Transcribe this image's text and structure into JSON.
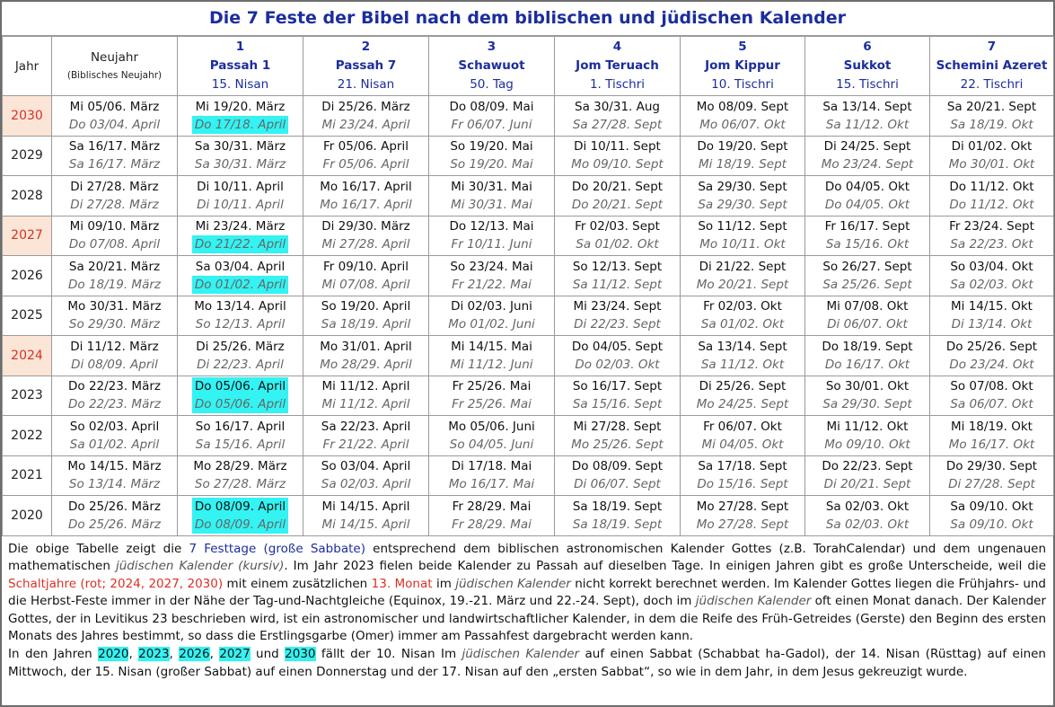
{
  "title": "Die 7 Feste der Bibel nach dem biblischen und jüdischen Kalender",
  "header": {
    "year": "Jahr",
    "newyear": "Neujahr",
    "newyear_sub": "(Biblisches Neujahr)",
    "feasts": [
      {
        "num": "1",
        "name": "Passah 1",
        "date": "15. Nisan"
      },
      {
        "num": "2",
        "name": "Passah 7",
        "date": "21. Nisan"
      },
      {
        "num": "3",
        "name": "Schawuot",
        "date": "50. Tag"
      },
      {
        "num": "4",
        "name": "Jom Teruach",
        "date": "1. Tischri"
      },
      {
        "num": "5",
        "name": "Jom Kippur",
        "date": "10. Tischri"
      },
      {
        "num": "6",
        "name": "Sukkot",
        "date": "15. Tischri"
      },
      {
        "num": "7",
        "name": "Schemini Azeret",
        "date": "22. Tischri"
      }
    ]
  },
  "rows": [
    {
      "year": "2030",
      "leap": true,
      "cells": [
        {
          "b": "Mi 05/06. März",
          "j": "Do 03/04. April"
        },
        {
          "b": "Mi 19/20. März",
          "j": "Do 17/18. April",
          "hj": true
        },
        {
          "b": "Di 25/26. März",
          "j": "Mi 23/24. April"
        },
        {
          "b": "Do 08/09. Mai",
          "j": "Fr 06/07. Juni"
        },
        {
          "b": "Sa 30/31. Aug",
          "j": "Sa 27/28. Sept"
        },
        {
          "b": "Mo 08/09. Sept",
          "j": "Mo 06/07. Okt"
        },
        {
          "b": "Sa 13/14. Sept",
          "j": "Sa 11/12. Okt"
        },
        {
          "b": "Sa 20/21. Sept",
          "j": "Sa 18/19. Okt"
        }
      ]
    },
    {
      "year": "2029",
      "leap": false,
      "cells": [
        {
          "b": "Sa 16/17. März",
          "j": "Sa 16/17. März"
        },
        {
          "b": "Sa 30/31. März",
          "j": "Sa 30/31. März"
        },
        {
          "b": "Fr 05/06. April",
          "j": "Fr 05/06. April"
        },
        {
          "b": "So 19/20. Mai",
          "j": "So 19/20. Mai"
        },
        {
          "b": "Di 10/11. Sept",
          "j": "Mo 09/10. Sept"
        },
        {
          "b": "Do 19/20. Sept",
          "j": "Mi 18/19. Sept"
        },
        {
          "b": "Di 24/25. Sept",
          "j": "Mo 23/24. Sept"
        },
        {
          "b": "Di 01/02. Okt",
          "j": "Mo 30/01. Okt"
        }
      ]
    },
    {
      "year": "2028",
      "leap": false,
      "cells": [
        {
          "b": "Di 27/28. März",
          "j": "Di 27/28. März"
        },
        {
          "b": "Di 10/11. April",
          "j": "Di 10/11. April"
        },
        {
          "b": "Mo 16/17. April",
          "j": "Mo 16/17. April"
        },
        {
          "b": "Mi 30/31. Mai",
          "j": "Mi 30/31. Mai"
        },
        {
          "b": "Do 20/21. Sept",
          "j": "Do 20/21. Sept"
        },
        {
          "b": "Sa 29/30. Sept",
          "j": "Sa 29/30. Sept"
        },
        {
          "b": "Do 04/05. Okt",
          "j": "Do 04/05. Okt"
        },
        {
          "b": "Do 11/12. Okt",
          "j": "Do 11/12. Okt"
        }
      ]
    },
    {
      "year": "2027",
      "leap": true,
      "cells": [
        {
          "b": "Mi 09/10. März",
          "j": "Do 07/08. April"
        },
        {
          "b": "Mi 23/24. März",
          "j": "Do 21/22. April",
          "hj": true
        },
        {
          "b": "Di 29/30. März",
          "j": "Mi 27/28. April"
        },
        {
          "b": "Do 12/13. Mai",
          "j": "Fr 10/11. Juni"
        },
        {
          "b": "Fr 02/03. Sept",
          "j": "Sa 01/02. Okt"
        },
        {
          "b": "So 11/12. Sept",
          "j": "Mo 10/11. Okt"
        },
        {
          "b": "Fr 16/17. Sept",
          "j": "Sa 15/16. Okt"
        },
        {
          "b": "Fr 23/24. Sept",
          "j": "Sa 22/23. Okt"
        }
      ]
    },
    {
      "year": "2026",
      "leap": false,
      "cells": [
        {
          "b": "Sa 20/21. März",
          "j": "Do 18/19. März"
        },
        {
          "b": "Sa 03/04. April",
          "j": "Do 01/02. April",
          "hj": true
        },
        {
          "b": "Fr 09/10. April",
          "j": "Mi 07/08. April"
        },
        {
          "b": "So 23/24. Mai",
          "j": "Fr 21/22. Mai"
        },
        {
          "b": "So 12/13. Sept",
          "j": "Sa 11/12. Sept"
        },
        {
          "b": "Di 21/22. Sept",
          "j": "Mo 20/21. Sept"
        },
        {
          "b": "So 26/27. Sept",
          "j": "Sa 25/26. Sept"
        },
        {
          "b": "So 03/04. Okt",
          "j": "Sa 02/03. Okt"
        }
      ]
    },
    {
      "year": "2025",
      "leap": false,
      "cells": [
        {
          "b": "Mo 30/31. März",
          "j": "So 29/30. März"
        },
        {
          "b": "Mo 13/14. April",
          "j": "So 12/13. April"
        },
        {
          "b": "So 19/20. April",
          "j": "Sa 18/19. April"
        },
        {
          "b": "Di 02/03. Juni",
          "j": "Mo 01/02. Juni"
        },
        {
          "b": "Mi 23/24. Sept",
          "j": "Di 22/23. Sept"
        },
        {
          "b": "Fr 02/03. Okt",
          "j": "Sa 01/02. Okt"
        },
        {
          "b": "Mi 07/08. Okt",
          "j": "Di 06/07. Okt"
        },
        {
          "b": "Mi 14/15. Okt",
          "j": "Di 13/14. Okt"
        }
      ]
    },
    {
      "year": "2024",
      "leap": true,
      "cells": [
        {
          "b": "Di 11/12. März",
          "j": "Di 08/09. April"
        },
        {
          "b": "Di 25/26. März",
          "j": "Di 22/23. April"
        },
        {
          "b": "Mo 31/01. April",
          "j": "Mo 28/29. April"
        },
        {
          "b": "Mi 14/15. Mai",
          "j": "Mi 11/12. Juni"
        },
        {
          "b": "Do 04/05. Sept",
          "j": "Do 02/03. Okt"
        },
        {
          "b": "Sa 13/14. Sept",
          "j": "Sa 11/12. Okt"
        },
        {
          "b": "Do 18/19. Sept",
          "j": "Do 16/17. Okt"
        },
        {
          "b": "Do 25/26. Sept",
          "j": "Do 23/24. Okt"
        }
      ]
    },
    {
      "year": "2023",
      "leap": false,
      "cells": [
        {
          "b": "Do 22/23. März",
          "j": "Do 22/23. März"
        },
        {
          "b": "Do 05/06. April",
          "j": "Do 05/06. April",
          "hb": true,
          "hj": true
        },
        {
          "b": "Mi 11/12. April",
          "j": "Mi 11/12. April"
        },
        {
          "b": "Fr 25/26. Mai",
          "j": "Fr 25/26. Mai"
        },
        {
          "b": "So 16/17. Sept",
          "j": "Sa 15/16. Sept"
        },
        {
          "b": "Di 25/26. Sept",
          "j": "Mo 24/25. Sept"
        },
        {
          "b": "So 30/01. Okt",
          "j": "Sa 29/30. Sept"
        },
        {
          "b": "So 07/08. Okt",
          "j": "Sa 06/07. Okt"
        }
      ]
    },
    {
      "year": "2022",
      "leap": false,
      "cells": [
        {
          "b": "So 02/03. April",
          "j": "Sa 01/02. April"
        },
        {
          "b": "So 16/17. April",
          "j": "Sa 15/16. April"
        },
        {
          "b": "Sa 22/23. April",
          "j": "Fr 21/22. April"
        },
        {
          "b": "Mo 05/06. Juni",
          "j": "So 04/05. Juni"
        },
        {
          "b": "Mi 27/28. Sept",
          "j": "Mo 25/26. Sept"
        },
        {
          "b": "Fr 06/07. Okt",
          "j": "Mi 04/05. Okt"
        },
        {
          "b": "Mi 11/12. Okt",
          "j": "Mo 09/10. Okt"
        },
        {
          "b": "Mi 18/19. Okt",
          "j": "Mo 16/17. Okt"
        }
      ]
    },
    {
      "year": "2021",
      "leap": false,
      "cells": [
        {
          "b": "Mo 14/15. März",
          "j": "So 13/14. März"
        },
        {
          "b": "Mo 28/29. März",
          "j": "So 27/28. März"
        },
        {
          "b": "So 03/04. April",
          "j": "Sa 02/03. April"
        },
        {
          "b": "Di 17/18. Mai",
          "j": "Mo 16/17. Mai"
        },
        {
          "b": "Do 08/09. Sept",
          "j": "Di 06/07. Sept"
        },
        {
          "b": "Sa 17/18. Sept",
          "j": "Do 15/16. Sept"
        },
        {
          "b": "Do 22/23. Sept",
          "j": "Di 20/21. Sept"
        },
        {
          "b": "Do 29/30. Sept",
          "j": "Di 27/28. Sept"
        }
      ]
    },
    {
      "year": "2020",
      "leap": false,
      "cells": [
        {
          "b": "Do 25/26. März",
          "j": "Do 25/26. März"
        },
        {
          "b": "Do 08/09. April",
          "j": "Do 08/09. April",
          "hb": true,
          "hj": true
        },
        {
          "b": "Mi 14/15. April",
          "j": "Mi 14/15. April"
        },
        {
          "b": "Fr 28/29. Mai",
          "j": "Fr 28/29. Mai"
        },
        {
          "b": "Sa 18/19. Sept",
          "j": "Sa 18/19. Sept"
        },
        {
          "b": "Mo 27/28. Sept",
          "j": "Mo 27/28. Sept"
        },
        {
          "b": "Sa 02/03. Okt",
          "j": "Sa 02/03. Okt"
        },
        {
          "b": "Sa 09/10. Okt",
          "j": "Sa 09/10. Okt"
        }
      ]
    }
  ],
  "description": {
    "p1": [
      {
        "t": "Die obige Tabelle zeigt die ",
        "s": ""
      },
      {
        "t": "7 Festtage (große Sabbate)",
        "s": "blue"
      },
      {
        "t": " entsprechend dem biblischen astronomischen Kalender Gottes (z.B. TorahCalendar) und dem ungenauen mathematischen ",
        "s": ""
      },
      {
        "t": "jüdischen Kalender (kursiv)",
        "s": "ital"
      },
      {
        "t": ". Im Jahr 2023 fielen beide Kalender zu Passah auf dieselben Tage. In einigen Jahren gibt es große Unterscheide, weil die ",
        "s": ""
      },
      {
        "t": "Schaltjahre (rot; 2024, 2027, 2030)",
        "s": "red"
      },
      {
        "t": " mit einem zusätzlichen ",
        "s": ""
      },
      {
        "t": "13. Monat",
        "s": "red"
      },
      {
        "t": " im ",
        "s": ""
      },
      {
        "t": "jüdischen Kalender",
        "s": "ital"
      },
      {
        "t": " nicht korrekt berechnet werden. Im Kalender Gottes liegen die Frühjahrs- und die Herbst-Feste immer in der Nähe der Tag-und-Nachtgleiche (Equinox, 19.-21. März und 22.-24. Sept), doch im ",
        "s": ""
      },
      {
        "t": "jüdischen Kalender",
        "s": "ital"
      },
      {
        "t": " oft einen Monat danach. Der Kalender Gottes, der in Levitikus 23 beschrieben wird, ist ein astronomischer und landwirtschaftlicher Kalender, in dem die Reife des Früh-Getreides (Gerste) den Beginn des ersten Monats des Jahres bestimmt, so dass die Erstlingsgarbe (Omer) immer am Passahfest dargebracht werden kann.",
        "s": ""
      }
    ],
    "p2": [
      {
        "t": "In den Jahren ",
        "s": ""
      },
      {
        "t": "2020",
        "s": "cy"
      },
      {
        "t": ", ",
        "s": ""
      },
      {
        "t": "2023",
        "s": "cy"
      },
      {
        "t": ", ",
        "s": ""
      },
      {
        "t": "2026",
        "s": "cy"
      },
      {
        "t": ", ",
        "s": ""
      },
      {
        "t": "2027",
        "s": "cy"
      },
      {
        "t": " und ",
        "s": ""
      },
      {
        "t": "2030",
        "s": "cy"
      },
      {
        "t": " fällt der 10. Nisan Im ",
        "s": ""
      },
      {
        "t": "jüdischen Kalender",
        "s": "ital"
      },
      {
        "t": " auf einen Sabbat (Schabbat ha-Gadol), der 14. Nisan (Rüsttag) auf einen Mittwoch, der 15. Nisan (großer Sabbat) auf einen Donnerstag und der 17. Nisan auf den „ersten Sabbat“, so wie in dem Jahr, in dem Jesus gekreuzigt wurde.",
        "s": ""
      }
    ]
  },
  "colors": {
    "title": "#1c2d9e",
    "leap_bg": "#fbe5d6",
    "leap_text": "#d93025",
    "highlight": "#33f3f3"
  }
}
